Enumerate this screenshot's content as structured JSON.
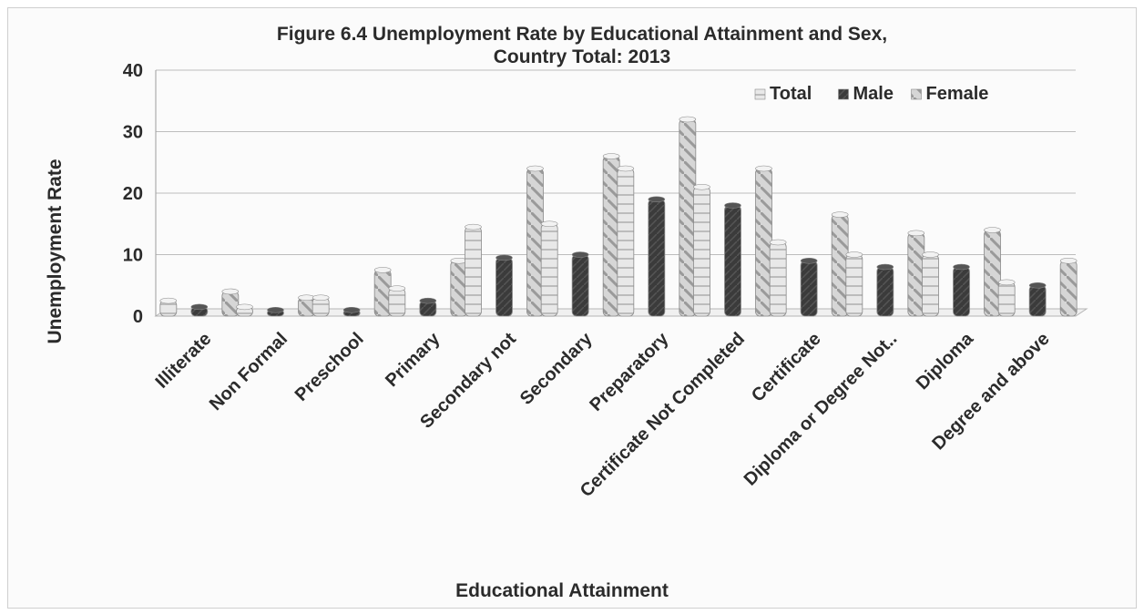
{
  "chart_data": {
    "type": "bar",
    "title": "Figure 6.4 Unemployment Rate by Educational Attainment and Sex,",
    "subtitle": "Country Total: 2013",
    "xlabel": "Educational Attainment",
    "ylabel": "Unemployment Rate",
    "ylim": [
      0,
      40
    ],
    "yticks": [
      0,
      10,
      20,
      30,
      40
    ],
    "grid": true,
    "legend_position": "top-right",
    "categories": [
      "Illiterate",
      "Non Formal",
      "Preschool",
      "Primary",
      "Secondary not",
      "Secondary",
      "Preparatory",
      "Certificate Not Completed",
      "Certificate",
      "Diploma or Degree Not..",
      "Diploma",
      "Degree  and above"
    ],
    "series": [
      {
        "name": "Total",
        "color": "#d9d9d9",
        "values": [
          2.5,
          1.5,
          3,
          4.5,
          14.5,
          15,
          24,
          21,
          12,
          10,
          10,
          5.5
        ]
      },
      {
        "name": "Male",
        "color": "#3a3a3a",
        "values": [
          1.5,
          1,
          1,
          2.5,
          9.5,
          10,
          19,
          18,
          9,
          8,
          8,
          5
        ]
      },
      {
        "name": "Female",
        "color": "#bdbdbd",
        "values": [
          4,
          3,
          7.5,
          9,
          24,
          26,
          32,
          24,
          16.5,
          13.5,
          14,
          9
        ]
      }
    ]
  }
}
